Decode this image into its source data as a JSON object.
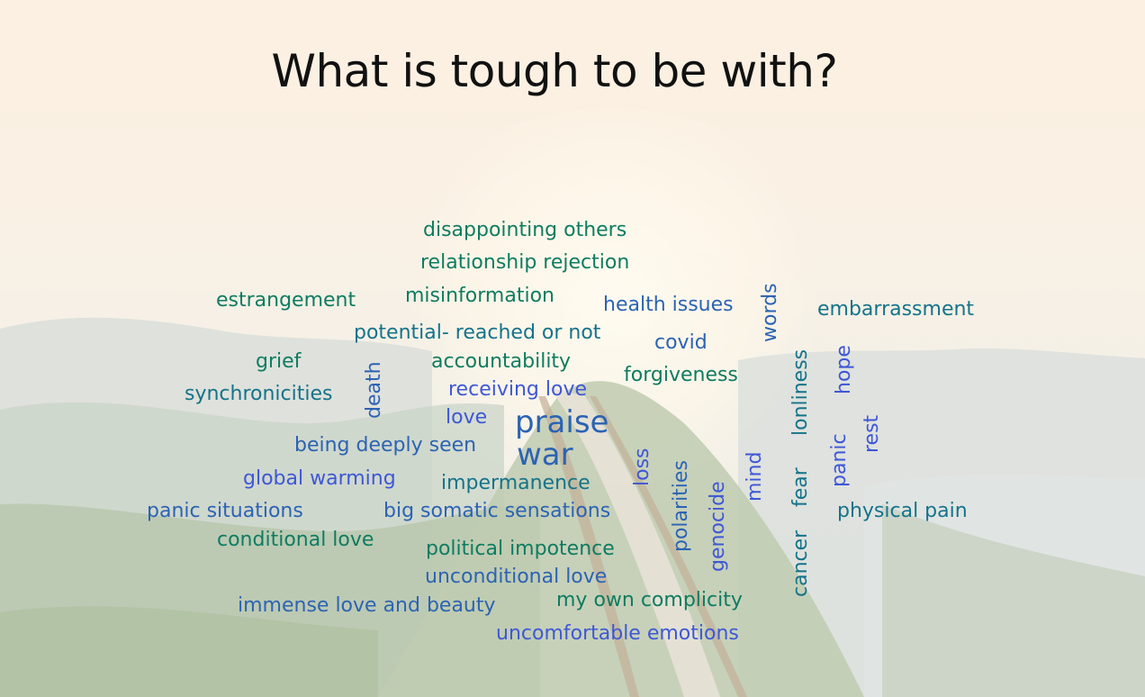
{
  "title": "What is tough to be with?",
  "colors": {
    "green": "#0e7c61",
    "teal": "#15738a",
    "blue": "#2c63b3",
    "indigo": "#3e57d6",
    "title": "#111111"
  },
  "words": [
    {
      "text": "disappointing others",
      "color": "green"
    },
    {
      "text": "relationship rejection",
      "color": "green"
    },
    {
      "text": "estrangement",
      "color": "green"
    },
    {
      "text": "misinformation",
      "color": "green"
    },
    {
      "text": "health issues",
      "color": "blue"
    },
    {
      "text": "words",
      "color": "blue"
    },
    {
      "text": "embarrassment",
      "color": "teal"
    },
    {
      "text": "potential- reached or not",
      "color": "teal"
    },
    {
      "text": "covid",
      "color": "blue"
    },
    {
      "text": "grief",
      "color": "green"
    },
    {
      "text": "accountability",
      "color": "green"
    },
    {
      "text": "forgiveness",
      "color": "green"
    },
    {
      "text": "synchronicities",
      "color": "teal"
    },
    {
      "text": "death",
      "color": "blue"
    },
    {
      "text": "receiving love",
      "color": "indigo"
    },
    {
      "text": "lonliness",
      "color": "teal"
    },
    {
      "text": "hope",
      "color": "indigo"
    },
    {
      "text": "love",
      "color": "indigo"
    },
    {
      "text": "praise",
      "color": "blue"
    },
    {
      "text": "war",
      "color": "blue"
    },
    {
      "text": "being deeply seen",
      "color": "blue"
    },
    {
      "text": "rest",
      "color": "indigo"
    },
    {
      "text": "global warming",
      "color": "indigo"
    },
    {
      "text": "impermanence",
      "color": "teal"
    },
    {
      "text": "loss",
      "color": "indigo"
    },
    {
      "text": "polarities",
      "color": "blue"
    },
    {
      "text": "genocide",
      "color": "indigo"
    },
    {
      "text": "mind",
      "color": "indigo"
    },
    {
      "text": "fear",
      "color": "teal"
    },
    {
      "text": "panic",
      "color": "indigo"
    },
    {
      "text": "panic situations",
      "color": "blue"
    },
    {
      "text": "big somatic sensations",
      "color": "blue"
    },
    {
      "text": "physical pain",
      "color": "teal"
    },
    {
      "text": "conditional love",
      "color": "green"
    },
    {
      "text": "political impotence",
      "color": "green"
    },
    {
      "text": "unconditional love",
      "color": "blue"
    },
    {
      "text": "cancer",
      "color": "teal"
    },
    {
      "text": "immense love and beauty",
      "color": "blue"
    },
    {
      "text": "my own complicity",
      "color": "green"
    },
    {
      "text": "uncomfortable emotions",
      "color": "indigo"
    }
  ]
}
